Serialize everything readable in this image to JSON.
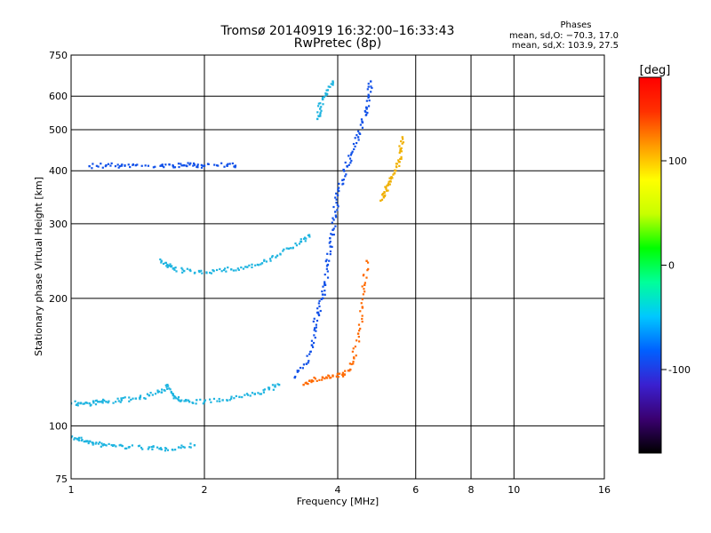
{
  "chart_data": {
    "type": "scatter",
    "title": "Tromsø 20140919 16:32:00–16:33:43",
    "subtitle": "RwPretec (8p)",
    "xlabel": "Frequency [MHz]",
    "ylabel": "Stationary phase Virtual Height [km]",
    "xscale": "log",
    "yscale": "log",
    "xlim": [
      1,
      16
    ],
    "ylim": [
      75,
      750
    ],
    "xticks": [
      1,
      2,
      4,
      6,
      8,
      10,
      16
    ],
    "yticks": [
      75,
      100,
      200,
      300,
      400,
      500,
      600,
      750
    ],
    "grid": true,
    "phases": {
      "title": "Phases",
      "line_o": "mean, sd,O: −70.3, 17.0",
      "line_x": "mean, sd,X: 103.9, 27.5"
    },
    "colorbar": {
      "label": "[deg]",
      "ticks": [
        100,
        0,
        -100
      ],
      "range": [
        -180,
        180
      ],
      "colors": [
        "#000000",
        "#3a0070",
        "#3a20d0",
        "#0060ff",
        "#00c8ff",
        "#00ff9a",
        "#00ff00",
        "#c8ff00",
        "#ffff00",
        "#ff9a00",
        "#ff3000",
        "#ff0000"
      ]
    },
    "series": [
      {
        "color": "#1fb4e0",
        "points": [
          [
            1.0,
            94
          ],
          [
            1.04,
            93
          ],
          [
            1.08,
            92
          ],
          [
            1.12,
            91
          ],
          [
            1.18,
            90
          ],
          [
            1.25,
            90
          ],
          [
            1.35,
            89
          ],
          [
            1.5,
            89
          ],
          [
            1.6,
            88
          ],
          [
            1.75,
            89
          ],
          [
            1.9,
            90
          ]
        ]
      },
      {
        "color": "#1fb4e0",
        "points": [
          [
            1.0,
            113
          ],
          [
            1.05,
            113
          ],
          [
            1.1,
            113
          ],
          [
            1.15,
            114
          ],
          [
            1.2,
            114
          ],
          [
            1.3,
            115
          ],
          [
            1.4,
            116
          ],
          [
            1.5,
            118
          ],
          [
            1.6,
            120
          ],
          [
            1.65,
            125
          ],
          [
            1.7,
            118
          ],
          [
            1.75,
            115
          ],
          [
            1.85,
            114
          ],
          [
            2.0,
            114
          ],
          [
            2.2,
            115
          ],
          [
            2.4,
            117
          ],
          [
            2.6,
            119
          ],
          [
            2.8,
            122
          ],
          [
            2.95,
            125
          ]
        ]
      },
      {
        "color": "#1fb4e0",
        "points": [
          [
            1.6,
            245
          ],
          [
            1.65,
            240
          ],
          [
            1.7,
            235
          ],
          [
            1.8,
            232
          ],
          [
            1.95,
            231
          ],
          [
            2.1,
            232
          ],
          [
            2.3,
            234
          ],
          [
            2.5,
            237
          ],
          [
            2.7,
            242
          ],
          [
            2.9,
            250
          ],
          [
            3.1,
            262
          ],
          [
            3.3,
            272
          ],
          [
            3.45,
            282
          ]
        ]
      },
      {
        "color": "#1050e8",
        "points": [
          [
            1.1,
            410
          ],
          [
            1.2,
            412
          ],
          [
            1.3,
            411
          ],
          [
            1.4,
            412
          ],
          [
            1.6,
            412
          ],
          [
            1.7,
            410
          ],
          [
            1.8,
            412
          ],
          [
            1.9,
            413
          ],
          [
            2.0,
            411
          ],
          [
            2.25,
            412
          ],
          [
            2.35,
            411
          ]
        ]
      },
      {
        "color": "#1050e8",
        "points": [
          [
            3.2,
            130
          ],
          [
            3.4,
            140
          ],
          [
            3.5,
            155
          ],
          [
            3.55,
            170
          ],
          [
            3.6,
            185
          ],
          [
            3.7,
            200
          ],
          [
            3.75,
            215
          ],
          [
            3.8,
            240
          ],
          [
            3.85,
            265
          ],
          [
            3.9,
            290
          ],
          [
            3.95,
            320
          ],
          [
            4.0,
            350
          ],
          [
            4.1,
            380
          ],
          [
            4.2,
            410
          ],
          [
            4.3,
            440
          ],
          [
            4.45,
            480
          ],
          [
            4.55,
            520
          ],
          [
            4.65,
            560
          ],
          [
            4.7,
            600
          ],
          [
            4.75,
            650
          ]
        ]
      },
      {
        "color": "#ff6a00",
        "points": [
          [
            3.35,
            125
          ],
          [
            3.5,
            128
          ],
          [
            3.7,
            130
          ],
          [
            3.9,
            131
          ],
          [
            4.1,
            132
          ],
          [
            4.25,
            135
          ],
          [
            4.35,
            145
          ],
          [
            4.45,
            165
          ],
          [
            4.55,
            190
          ],
          [
            4.6,
            215
          ],
          [
            4.65,
            245
          ]
        ]
      },
      {
        "color": "#f0b000",
        "points": [
          [
            5.0,
            340
          ],
          [
            5.1,
            355
          ],
          [
            5.2,
            370
          ],
          [
            5.3,
            385
          ],
          [
            5.4,
            400
          ],
          [
            5.5,
            420
          ],
          [
            5.55,
            450
          ],
          [
            5.6,
            480
          ]
        ]
      },
      {
        "color": "#1fb4e0",
        "points": [
          [
            3.6,
            530
          ],
          [
            3.65,
            560
          ],
          [
            3.7,
            590
          ],
          [
            3.8,
            620
          ],
          [
            3.9,
            650
          ]
        ]
      }
    ]
  }
}
